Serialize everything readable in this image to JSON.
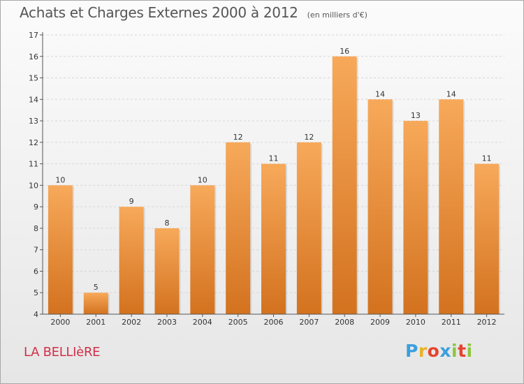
{
  "header": {
    "title": "Achats et Charges Externes 2000 à 2012",
    "subtitle": "(en milliers d'€)"
  },
  "footer": {
    "commune": "LA BELLIèRE",
    "logo": {
      "letters": [
        "P",
        "r",
        "o",
        "x",
        "i",
        "t",
        "i"
      ],
      "colors": [
        "#3aa0dc",
        "#e8b22a",
        "#e5432f",
        "#3aa0dc",
        "#8dc63f",
        "#e5432f",
        "#8dc63f"
      ]
    }
  },
  "colors": {
    "bar_light": "#f7a95a",
    "bar_dark": "#d3721f",
    "axis": "#555555",
    "grid": "#d6d6d6"
  },
  "chart_data": {
    "type": "bar",
    "title": "Achats et Charges Externes 2000 à 2012",
    "subtitle": "(en milliers d'€)",
    "categories": [
      "2000",
      "2001",
      "2002",
      "2003",
      "2004",
      "2005",
      "2006",
      "2007",
      "2008",
      "2009",
      "2010",
      "2011",
      "2012"
    ],
    "values": [
      10,
      5,
      9,
      8,
      10,
      12,
      11,
      12,
      16,
      14,
      13,
      14,
      11
    ],
    "ylim": [
      4,
      17
    ],
    "yticks": [
      4,
      5,
      6,
      7,
      8,
      9,
      10,
      11,
      12,
      13,
      14,
      15,
      16,
      17
    ],
    "grid": true,
    "data_labels": true
  }
}
